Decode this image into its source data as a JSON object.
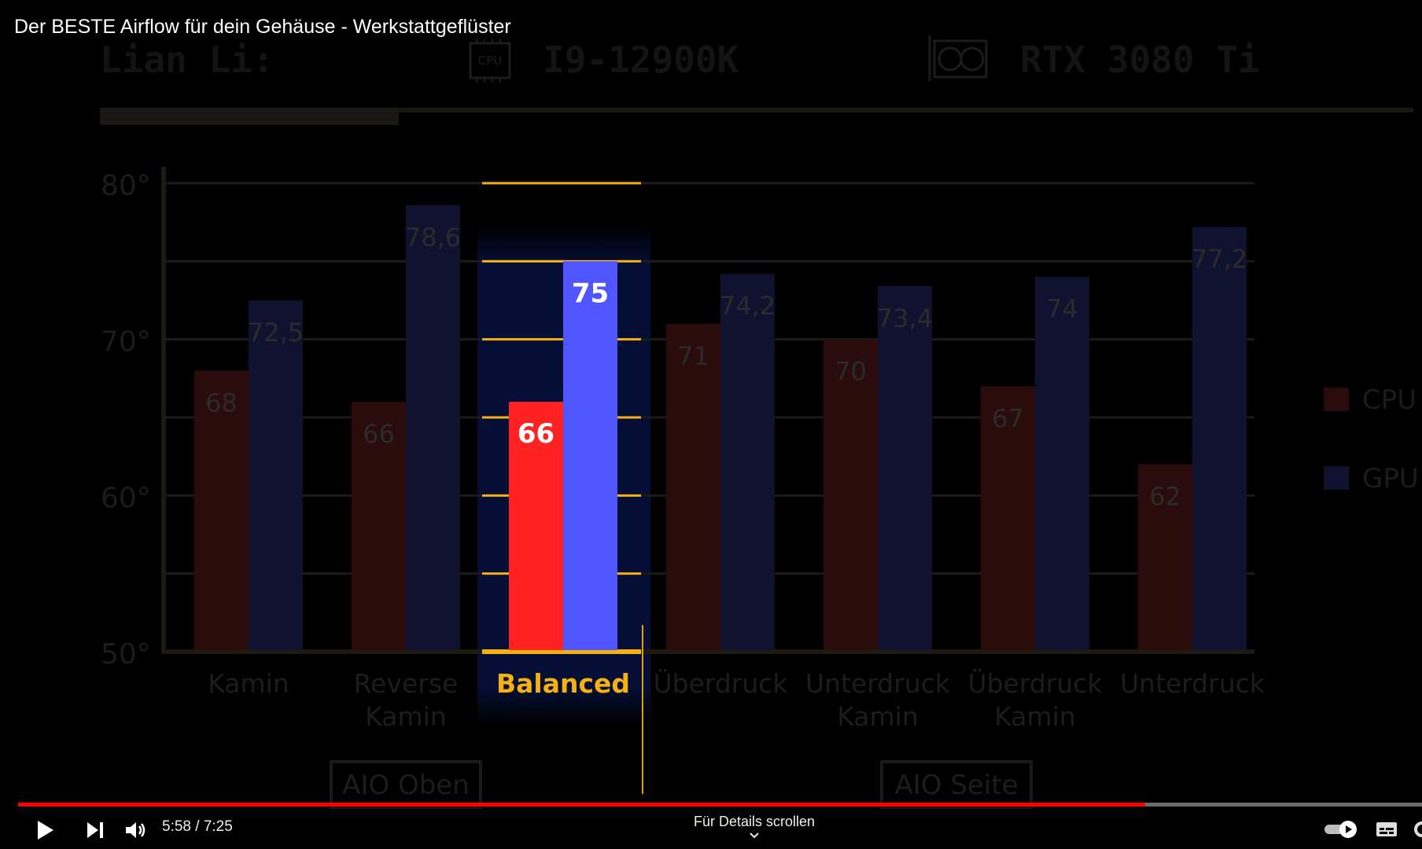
{
  "video": {
    "title": "Der BESTE Airflow für dein Gehäuse - Werkstattgeflüster",
    "time_display": "5:58 / 7:25",
    "progress": 0.803,
    "details_hint": "Für Details scrollen"
  },
  "controls": {
    "play_icon": "play-icon",
    "next_icon": "skip-next-icon",
    "volume_icon": "volume-icon",
    "autoplay_icon": "autoplay-toggle-icon",
    "subtitles_icon": "subtitles-icon",
    "chevron_icon": "chevron-down-icon"
  },
  "header": {
    "brand": "Lian Li:",
    "cpu_chip_label": "CPU",
    "cpu_model": "I9-12900K",
    "gpu_model": "RTX 3080 Ti"
  },
  "groups": [
    "AIO Oben",
    "AIO Seite"
  ],
  "colors": {
    "cpu_dim": "#2a0c0c",
    "gpu_dim": "#111230",
    "cpu_highlight": "#ff2222",
    "gpu_highlight": "#5055ff",
    "accent": "#f5b014",
    "progress": "#ff0000"
  },
  "chart_data": {
    "type": "bar",
    "categories": [
      "Kamin",
      "Reverse Kamin",
      "Balanced",
      "Überdruck",
      "Unterdruck Kamin",
      "Überdruck Kamin",
      "Unterdruck"
    ],
    "category_lines": [
      [
        "Kamin"
      ],
      [
        "Reverse",
        "Kamin"
      ],
      [
        "Balanced"
      ],
      [
        "Überdruck"
      ],
      [
        "Unterdruck",
        "Kamin"
      ],
      [
        "Überdruck",
        "Kamin"
      ],
      [
        "Unterdruck"
      ]
    ],
    "series": [
      {
        "name": "CPU",
        "values": [
          68,
          66,
          66,
          71,
          70,
          67,
          62
        ],
        "labels": [
          "68",
          "66",
          "66",
          "71",
          "70",
          "67",
          "62"
        ]
      },
      {
        "name": "GPU",
        "values": [
          72.5,
          78.6,
          75,
          74.2,
          73.4,
          74,
          77.2
        ],
        "labels": [
          "72,5",
          "78,6",
          "75",
          "74,2",
          "73,4",
          "74",
          "77,2"
        ]
      }
    ],
    "highlighted_category": "Balanced",
    "yticks": [
      "80°",
      "70°",
      "60°",
      "50°"
    ],
    "ytick_values": [
      80,
      70,
      60,
      50
    ],
    "ylim": [
      50,
      80
    ],
    "grid": true,
    "legend": "right"
  }
}
